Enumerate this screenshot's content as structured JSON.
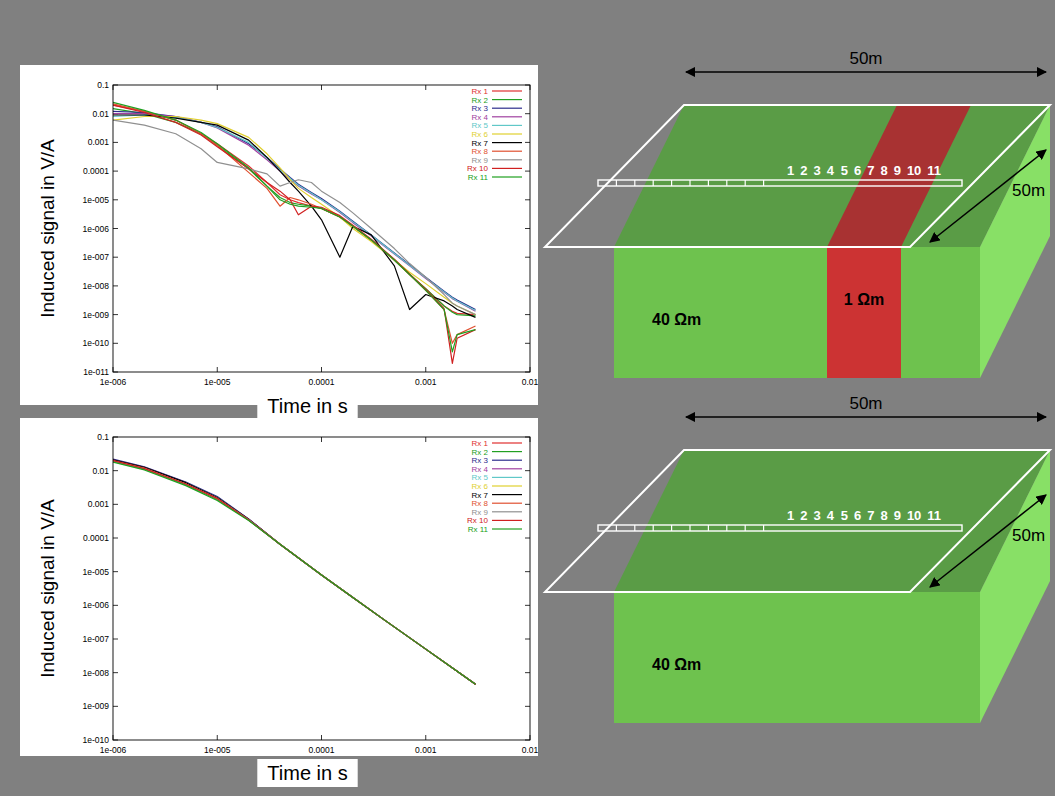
{
  "chart_data": [
    {
      "type": "line",
      "x_label": "Time in s",
      "y_label": "Induced signal in V/A",
      "log": true,
      "grid": false,
      "legend": "upper right",
      "xlim": [
        1e-06,
        0.01
      ],
      "xticks": [
        {
          "value": 1e-06,
          "label": "1e-006"
        },
        {
          "value": 1e-05,
          "label": "1e-005"
        },
        0.0001,
        0.001,
        0.01
      ],
      "ylim": [
        1e-11,
        0.1
      ],
      "yticks": [
        0.1,
        0.01,
        0.001,
        0.0001,
        {
          "value": 1e-05,
          "label": "1e-005"
        },
        {
          "value": 1e-06,
          "label": "1e-006"
        },
        {
          "value": 1e-07,
          "label": "1e-007"
        },
        {
          "value": 1e-08,
          "label": "1e-008"
        },
        {
          "value": 1e-09,
          "label": "1e-009"
        },
        {
          "value": 1e-10,
          "label": "1e-010"
        },
        {
          "value": 1e-11,
          "label": "1e-011"
        }
      ],
      "x": [
        1e-06,
        2e-06,
        4e-06,
        7e-06,
        1e-05,
        2e-05,
        3e-05,
        4e-05,
        5e-05,
        6e-05,
        8e-05,
        0.0001,
        0.00015,
        0.0002,
        0.0003,
        0.0005,
        0.0007,
        0.001,
        0.0015,
        0.0018,
        0.002,
        0.003
      ],
      "series": [
        {
          "name": "Rx 1",
          "color": "#e03030",
          "values": [
            0.02,
            0.012,
            0.006,
            0.002,
            0.0009,
            0.00015,
            4e-05,
            1.5e-05,
            1e-05,
            8e-06,
            6e-06,
            5e-06,
            2.5e-06,
            1.2e-06,
            4e-07,
            8e-08,
            2.5e-08,
            8e-09,
            2e-09,
            1.3e-09,
            1.1e-09,
            1e-09
          ]
        },
        {
          "name": "Rx 2",
          "color": "#22a022",
          "values": [
            0.015,
            0.01,
            0.005,
            0.002,
            0.0008,
            0.00012,
            3e-05,
            1.2e-05,
            8e-06,
            7e-06,
            6e-06,
            5e-06,
            2.5e-06,
            1.2e-06,
            4e-07,
            8e-08,
            2.5e-08,
            8e-09,
            2e-09,
            1.2e-09,
            1e-09,
            9e-10
          ]
        },
        {
          "name": "Rx 3",
          "color": "#2c2c8c",
          "values": [
            0.012,
            0.011,
            0.008,
            0.005,
            0.0035,
            0.0009,
            0.0003,
            0.00012,
            6e-05,
            3.5e-05,
            1.8e-05,
            1.1e-05,
            4e-06,
            1.8e-06,
            6e-07,
            1.4e-07,
            5.5e-08,
            2e-08,
            6.5e-09,
            4e-09,
            3.2e-09,
            1.5e-09
          ]
        },
        {
          "name": "Rx 4",
          "color": "#a040a0",
          "values": [
            0.01,
            0.01,
            0.008,
            0.005,
            0.0032,
            0.0008,
            0.00025,
            0.0001,
            5e-05,
            3e-05,
            1.6e-05,
            1e-05,
            3.6e-06,
            1.6e-06,
            5.5e-07,
            1.3e-07,
            5e-08,
            1.8e-08,
            6e-09,
            3.6e-09,
            2.9e-09,
            1.3e-09
          ]
        },
        {
          "name": "Rx 5",
          "color": "#60c8c8",
          "values": [
            0.008,
            0.009,
            0.0075,
            0.005,
            0.0033,
            0.001,
            0.00028,
            0.00011,
            5.5e-05,
            3.2e-05,
            1.7e-05,
            1e-05,
            3.8e-06,
            1.7e-06,
            5.8e-07,
            1.35e-07,
            5.2e-08,
            1.9e-08,
            6.2e-09,
            3.8e-09,
            3e-09,
            1.4e-09
          ]
        },
        {
          "name": "Rx 6",
          "color": "#e0d030",
          "values": [
            0.006,
            0.008,
            0.008,
            0.006,
            0.0045,
            0.0015,
            0.0004,
            0.00013,
            5e-05,
            2.5e-05,
            1.2e-05,
            7e-06,
            2.5e-06,
            1e-06,
            3.5e-07,
            8e-08,
            3e-08,
            1.2e-08,
            4e-09,
            2.5e-09,
            2e-09,
            1e-09
          ]
        },
        {
          "name": "Rx 7",
          "color": "#000000",
          "values": [
            0.009,
            0.009,
            0.007,
            0.005,
            0.004,
            0.0012,
            0.0003,
            0.0001,
            4e-05,
            2e-05,
            6e-06,
            2e-06,
            1e-07,
            1.2e-06,
            6e-07,
            5e-08,
            1.5e-09,
            5e-09,
            3e-09,
            2e-09,
            1.5e-09,
            8e-10
          ]
        },
        {
          "name": "Rx 8",
          "color": "#e05030",
          "values": [
            0.022,
            0.012,
            0.006,
            0.002,
            0.0008,
            9e-05,
            2.5e-05,
            6e-06,
            1.2e-05,
            1e-05,
            7e-06,
            5e-06,
            2.5e-06,
            1.2e-06,
            4e-07,
            8e-08,
            2.5e-08,
            7e-09,
            1.5e-09,
            1e-10,
            2e-10,
            4e-10
          ]
        },
        {
          "name": "Rx 9",
          "color": "#909090",
          "values": [
            0.006,
            0.004,
            0.002,
            0.0006,
            0.0002,
            0.00012,
            8e-05,
            3e-05,
            4e-05,
            5e-05,
            4e-05,
            2e-05,
            8e-06,
            3.5e-06,
            1e-06,
            2e-07,
            6e-08,
            2e-08,
            5e-09,
            2.5e-09,
            2e-09,
            1e-09
          ]
        },
        {
          "name": "Rx 10",
          "color": "#d02020",
          "values": [
            0.02,
            0.011,
            0.005,
            0.0018,
            0.0007,
            0.00012,
            4e-05,
            2e-05,
            1e-05,
            3e-06,
            6e-06,
            5.5e-06,
            2.8e-06,
            1.3e-06,
            4.2e-07,
            8.5e-08,
            2.6e-08,
            7.5e-09,
            1.6e-09,
            2e-11,
            1.5e-10,
            3e-10
          ]
        },
        {
          "name": "Rx 11",
          "color": "#20a020",
          "values": [
            0.025,
            0.013,
            0.006,
            0.0022,
            0.0009,
            0.00013,
            3e-05,
            1e-05,
            7e-06,
            6e-06,
            5.5e-06,
            5e-06,
            2.5e-06,
            1.2e-06,
            4e-07,
            8e-08,
            2.5e-08,
            7e-09,
            1.5e-09,
            5e-11,
            2e-10,
            3e-10
          ]
        }
      ]
    },
    {
      "type": "line",
      "x_label": "Time in s",
      "y_label": "Induced signal in V/A",
      "log": true,
      "grid": false,
      "legend": "upper right",
      "xlim": [
        1e-06,
        0.01
      ],
      "xticks": [
        {
          "value": 1e-06,
          "label": "1e-006"
        },
        {
          "value": 1e-05,
          "label": "1e-005"
        },
        0.0001,
        0.001,
        0.01
      ],
      "ylim": [
        1e-10,
        0.1
      ],
      "yticks": [
        0.1,
        0.01,
        0.001,
        0.0001,
        {
          "value": 1e-05,
          "label": "1e-005"
        },
        {
          "value": 1e-06,
          "label": "1e-006"
        },
        {
          "value": 1e-07,
          "label": "1e-007"
        },
        {
          "value": 1e-08,
          "label": "1e-008"
        },
        {
          "value": 1e-09,
          "label": "1e-009"
        },
        {
          "value": 1e-10,
          "label": "1e-010"
        }
      ],
      "x": [
        1e-06,
        2e-06,
        5e-06,
        1e-05,
        2e-05,
        4e-05,
        0.0001,
        0.0002,
        0.0004,
        0.001,
        0.002,
        0.003
      ],
      "series": [
        {
          "name": "Rx 1",
          "color": "#e03030",
          "values": [
            0.02,
            0.012,
            0.0042,
            0.0016,
            0.00036,
            6.5e-05,
            8e-06,
            1.7e-06,
            3.7e-07,
            5e-08,
            1.1e-08,
            4.5e-09
          ]
        },
        {
          "name": "Rx 2",
          "color": "#22a022",
          "values": [
            0.019,
            0.011,
            0.0038,
            0.0014,
            0.00034,
            6.5e-05,
            8e-06,
            1.7e-06,
            3.7e-07,
            5e-08,
            1.1e-08,
            4.5e-09
          ]
        },
        {
          "name": "Rx 3",
          "color": "#2c2c8c",
          "values": [
            0.022,
            0.013,
            0.0046,
            0.0017,
            0.00037,
            6.5e-05,
            8e-06,
            1.7e-06,
            3.7e-07,
            5e-08,
            1.1e-08,
            4.5e-09
          ]
        },
        {
          "name": "Rx 4",
          "color": "#a040a0",
          "values": [
            0.021,
            0.0125,
            0.0044,
            0.0016,
            0.00036,
            6.5e-05,
            8e-06,
            1.7e-06,
            3.7e-07,
            5e-08,
            1.1e-08,
            4.5e-09
          ]
        },
        {
          "name": "Rx 5",
          "color": "#60c8c8",
          "values": [
            0.02,
            0.012,
            0.0043,
            0.0016,
            0.00035,
            6.5e-05,
            8e-06,
            1.7e-06,
            3.7e-07,
            5e-08,
            1.1e-08,
            4.5e-09
          ]
        },
        {
          "name": "Rx 6",
          "color": "#e0d030",
          "values": [
            0.02,
            0.012,
            0.0042,
            0.0015,
            0.00035,
            6.5e-05,
            8e-06,
            1.7e-06,
            3.7e-07,
            5e-08,
            1.1e-08,
            4.5e-09
          ]
        },
        {
          "name": "Rx 7",
          "color": "#000000",
          "values": [
            0.021,
            0.0125,
            0.0044,
            0.0016,
            0.00036,
            6.5e-05,
            8e-06,
            1.7e-06,
            3.7e-07,
            5e-08,
            1.1e-08,
            4.5e-09
          ]
        },
        {
          "name": "Rx 8",
          "color": "#e05030",
          "values": [
            0.02,
            0.012,
            0.004,
            0.0015,
            0.00035,
            6.5e-05,
            8e-06,
            1.7e-06,
            3.7e-07,
            5e-08,
            1.1e-08,
            4.5e-09
          ]
        },
        {
          "name": "Rx 9",
          "color": "#909090",
          "values": [
            0.019,
            0.0115,
            0.004,
            0.0015,
            0.00035,
            6.5e-05,
            8e-06,
            1.7e-06,
            3.7e-07,
            5e-08,
            1.1e-08,
            4.5e-09
          ]
        },
        {
          "name": "Rx 10",
          "color": "#d02020",
          "values": [
            0.02,
            0.0115,
            0.004,
            0.0015,
            0.00034,
            6.5e-05,
            8e-06,
            1.7e-06,
            3.7e-07,
            5e-08,
            1.1e-08,
            4.5e-09
          ]
        },
        {
          "name": "Rx 11",
          "color": "#20a020",
          "values": [
            0.018,
            0.0105,
            0.0036,
            0.0013,
            0.00033,
            6.5e-05,
            8e-06,
            1.7e-06,
            3.7e-07,
            5e-08,
            1.1e-08,
            4.5e-09
          ]
        }
      ]
    }
  ],
  "diagrams": [
    {
      "width_label": "50m",
      "depth_label": "50m",
      "receivers": [
        1,
        2,
        3,
        4,
        5,
        6,
        7,
        8,
        9,
        10,
        11
      ],
      "host_resistivity": "40 Ωm",
      "anomaly_resistivity": "1 Ωm"
    },
    {
      "width_label": "50m",
      "depth_label": "50m",
      "receivers": [
        1,
        2,
        3,
        4,
        5,
        6,
        7,
        8,
        9,
        10,
        11
      ],
      "host_resistivity": "40 Ωm"
    }
  ]
}
